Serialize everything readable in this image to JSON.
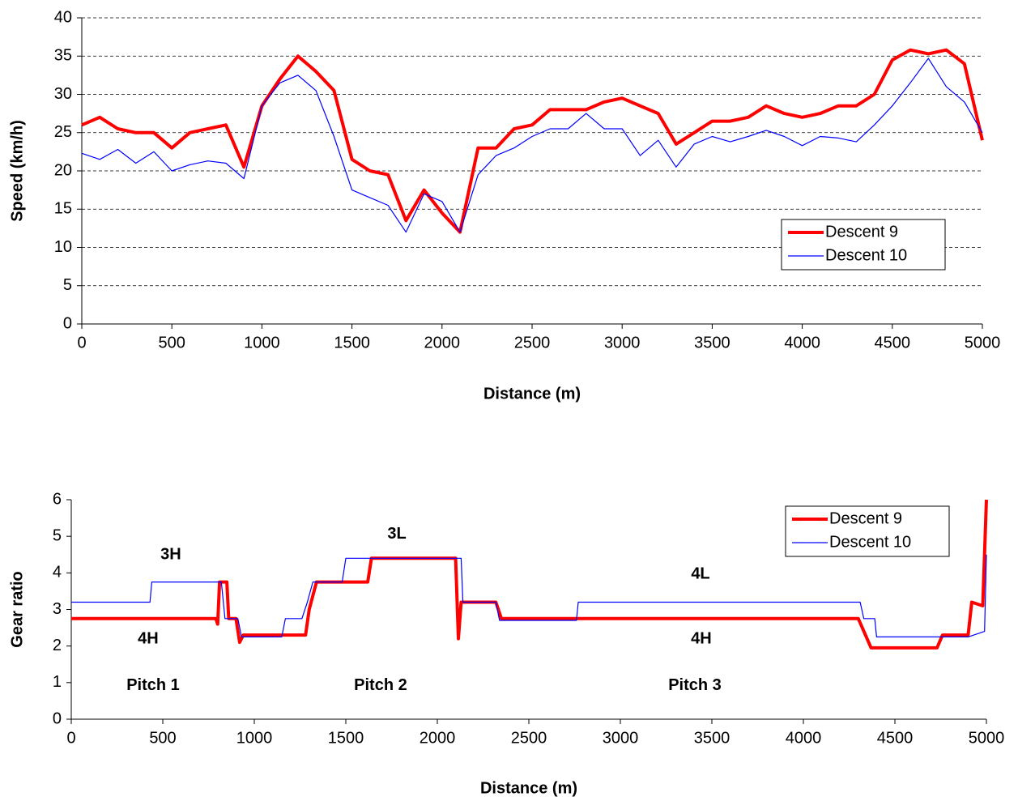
{
  "chart_data": [
    {
      "type": "line",
      "xlabel": "Distance (m)",
      "ylabel": "Speed (km/h)",
      "x": [
        0,
        100,
        200,
        300,
        400,
        500,
        600,
        700,
        800,
        900,
        1000,
        1100,
        1200,
        1300,
        1400,
        1500,
        1600,
        1700,
        1800,
        1900,
        2000,
        2100,
        2200,
        2300,
        2400,
        2500,
        2600,
        2700,
        2800,
        2900,
        3000,
        3100,
        3200,
        3300,
        3400,
        3500,
        3600,
        3700,
        3800,
        3900,
        4000,
        4100,
        4200,
        4300,
        4400,
        4500,
        4600,
        4700,
        4800,
        4900,
        5000
      ],
      "series": [
        {
          "name": "Descent 9",
          "color": "#ff0000",
          "line_width": 4,
          "values": [
            26,
            27,
            25.5,
            25,
            25,
            23,
            25,
            25.5,
            26,
            20.5,
            28.5,
            32,
            35,
            33,
            30.5,
            21.5,
            20,
            19.5,
            13.5,
            17.5,
            14.5,
            12,
            23,
            23,
            25.5,
            26,
            28,
            28,
            28,
            29,
            29.5,
            28.5,
            27.5,
            23.5,
            25,
            26.5,
            26.5,
            27,
            28.5,
            27.5,
            27,
            27.5,
            28.5,
            28.5,
            30,
            34.5,
            35.8,
            35.3,
            35.8,
            34,
            24
          ]
        },
        {
          "name": "Descent 10",
          "color": "#0000ff",
          "line_width": 1.2,
          "values": [
            22.3,
            21.5,
            22.8,
            21,
            22.5,
            20,
            20.8,
            21.3,
            21,
            19,
            28.5,
            31.5,
            32.5,
            30.5,
            24.5,
            17.5,
            16.5,
            15.5,
            12,
            17,
            16,
            12,
            19.5,
            22,
            23,
            24.5,
            25.5,
            25.5,
            27.5,
            25.5,
            25.5,
            22,
            24,
            20.5,
            23.5,
            24.5,
            23.8,
            24.5,
            25.3,
            24.5,
            23.3,
            24.5,
            24.3,
            23.8,
            26,
            28.5,
            31.5,
            34.7,
            31,
            29,
            25
          ]
        }
      ],
      "xlim": [
        0,
        5000
      ],
      "xticks": [
        0,
        500,
        1000,
        1500,
        2000,
        2500,
        3000,
        3500,
        4000,
        4500,
        5000
      ],
      "ylim": [
        0,
        40
      ],
      "yticks": [
        0,
        5,
        10,
        15,
        20,
        25,
        30,
        35,
        40
      ],
      "grid": true,
      "legend": "lower right"
    },
    {
      "type": "line",
      "xlabel": "Distance (m)",
      "ylabel": "Gear ratio",
      "series": [
        {
          "name": "Descent 9",
          "color": "#ff0000",
          "line_width": 4,
          "x": [
            0,
            790,
            800,
            810,
            850,
            860,
            900,
            920,
            940,
            1280,
            1300,
            1340,
            1620,
            1640,
            2100,
            2115,
            2130,
            2320,
            2350,
            4300,
            4370,
            4730,
            4760,
            4900,
            4920,
            4980,
            5000
          ],
          "values": [
            2.75,
            2.75,
            2.6,
            3.75,
            3.75,
            2.75,
            2.75,
            2.1,
            2.3,
            2.3,
            3,
            3.75,
            3.75,
            4.4,
            4.4,
            2.2,
            3.2,
            3.2,
            2.75,
            2.75,
            1.95,
            1.95,
            2.3,
            2.3,
            3.2,
            3.1,
            6
          ]
        },
        {
          "name": "Descent 10",
          "color": "#0000ff",
          "line_width": 1.2,
          "x": [
            0,
            430,
            440,
            820,
            840,
            910,
            930,
            1150,
            1170,
            1260,
            1290,
            1320,
            1480,
            1500,
            2130,
            2140,
            2320,
            2340,
            2760,
            2770,
            4310,
            4330,
            4390,
            4400,
            4900,
            4990,
            5000
          ],
          "values": [
            3.2,
            3.2,
            3.75,
            3.75,
            2.75,
            2.75,
            2.25,
            2.25,
            2.75,
            2.75,
            3.2,
            3.75,
            3.75,
            4.4,
            4.4,
            3.2,
            3.2,
            2.7,
            2.7,
            3.2,
            3.2,
            2.75,
            2.75,
            2.25,
            2.25,
            2.4,
            4.5
          ]
        }
      ],
      "xlim": [
        0,
        5000
      ],
      "xticks": [
        0,
        500,
        1000,
        1500,
        2000,
        2500,
        3000,
        3500,
        4000,
        4500,
        5000
      ],
      "ylim": [
        0,
        6
      ],
      "yticks": [
        0,
        1,
        2,
        3,
        4,
        5,
        6
      ],
      "grid": false,
      "legend": "upper right",
      "annotations": [
        {
          "text": "3H",
          "x": 544,
          "y": 4.49
        },
        {
          "text": "3L",
          "x": 1779,
          "y": 5.05
        },
        {
          "text": "4H",
          "x": 420,
          "y": 2.19
        },
        {
          "text": "4L",
          "x": 3438,
          "y": 3.96
        },
        {
          "text": "4H",
          "x": 3442,
          "y": 2.19
        },
        {
          "text": "Pitch 1",
          "x": 447,
          "y": 0.91
        },
        {
          "text": "Pitch 2",
          "x": 1690,
          "y": 0.91
        },
        {
          "text": "Pitch 3",
          "x": 3407,
          "y": 0.91
        }
      ]
    }
  ]
}
